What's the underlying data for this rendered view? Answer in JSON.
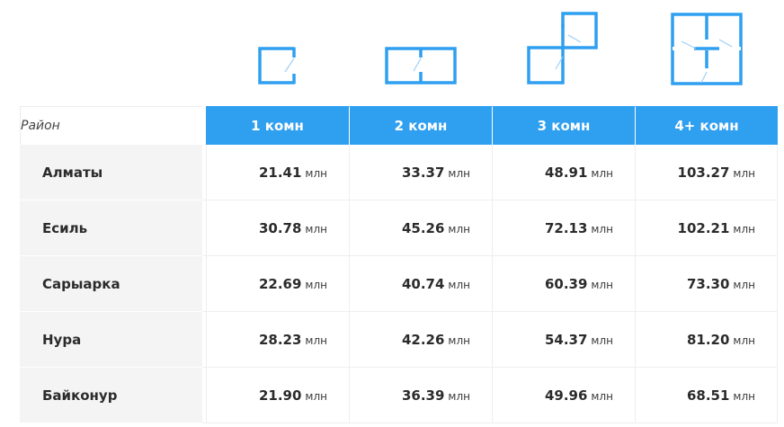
{
  "icons": {
    "room_1": "floorplan-1-room-icon",
    "room_2": "floorplan-2-room-icon",
    "room_3": "floorplan-3-room-icon",
    "room_4": "floorplan-4-room-icon"
  },
  "colors": {
    "accent": "#2f9ff0",
    "district_bg": "#f4f4f4",
    "text": "#2b2b2b"
  },
  "table": {
    "district_header": "Район",
    "room_headers": [
      "1 комн",
      "2 комн",
      "3 комн",
      "4+ комн"
    ],
    "unit": "млн",
    "rows": [
      {
        "district": "Алматы",
        "prices": [
          "21.41",
          "33.37",
          "48.91",
          "103.27"
        ]
      },
      {
        "district": "Есиль",
        "prices": [
          "30.78",
          "45.26",
          "72.13",
          "102.21"
        ]
      },
      {
        "district": "Сарыарка",
        "prices": [
          "22.69",
          "40.74",
          "60.39",
          "73.30"
        ]
      },
      {
        "district": "Нура",
        "prices": [
          "28.23",
          "42.26",
          "54.37",
          "81.20"
        ]
      },
      {
        "district": "Байконур",
        "prices": [
          "21.90",
          "36.39",
          "49.96",
          "68.51"
        ]
      }
    ]
  }
}
